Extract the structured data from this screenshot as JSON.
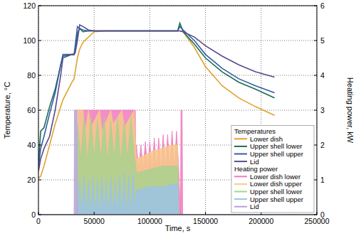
{
  "chart_data": {
    "type": "line",
    "x_label": "Time, s",
    "y_label": "Temperature, °C",
    "y2_label": "Heating power, kW",
    "xlim": [
      0,
      250000
    ],
    "xticks": [
      0,
      50000,
      100000,
      150000,
      200000,
      250000
    ],
    "ylim": [
      0,
      120
    ],
    "yticks": [
      0,
      20,
      40,
      60,
      80,
      100,
      120
    ],
    "y2lim": [
      0,
      6
    ],
    "y2ticks": [
      0,
      1,
      2,
      3,
      4,
      5,
      6
    ],
    "grid": true,
    "legend": "lower right",
    "legend_titles": [
      "Temperatures",
      "Heating power"
    ],
    "x": [
      0,
      2000,
      5000,
      10000,
      15000,
      20000,
      22000,
      30000,
      32000,
      33000,
      35000,
      37000,
      40000,
      45000,
      50000,
      60000,
      80000,
      100000,
      120000,
      125000,
      127000,
      130000,
      140000,
      150000,
      165000,
      180000,
      195000,
      212000
    ],
    "series": [
      {
        "name": "Lower dish",
        "color": "#e0a12e",
        "type": "line",
        "values": [
          21,
          22,
          28,
          40,
          52,
          62,
          66,
          76,
          78,
          82,
          90,
          95,
          99,
          102,
          105,
          105.5,
          105.5,
          105.5,
          105.5,
          105.5,
          105.5,
          105,
          96,
          85,
          74,
          67,
          62,
          57
        ]
      },
      {
        "name": "Upper shell lower",
        "color": "#1e6b52",
        "type": "line",
        "values": [
          29,
          48,
          50,
          62,
          72,
          86,
          91,
          92,
          92,
          95,
          104,
          107,
          105,
          105.5,
          105.5,
          105.5,
          105.5,
          105.5,
          105.5,
          105.5,
          110,
          105,
          98,
          90,
          82,
          76,
          72,
          67
        ]
      },
      {
        "name": "Upper shell upper",
        "color": "#2f5fa6",
        "type": "line",
        "values": [
          27,
          38,
          45,
          58,
          70,
          86,
          92,
          92,
          92,
          97,
          108,
          107,
          106,
          105.5,
          105.5,
          105.5,
          105.5,
          105.5,
          105.5,
          105.5,
          108,
          106,
          100,
          92,
          84,
          78,
          74,
          70
        ]
      },
      {
        "name": "Lid",
        "color": "#5a4a8f",
        "type": "line",
        "values": [
          25,
          32,
          38,
          45,
          60,
          80,
          90,
          92,
          92,
          93,
          100,
          109,
          108,
          106,
          105.5,
          105.5,
          105.5,
          105.5,
          105.5,
          105.5,
          105.5,
          105,
          102,
          97,
          91,
          86,
          82,
          79
        ]
      },
      {
        "name": "Lower dish lower",
        "color": "#f07ac0",
        "type": "area",
        "axis": "y2",
        "x": [
          0,
          32000,
          35000,
          35200,
          87000,
          87500,
          88000,
          90000,
          92000,
          94000,
          96000,
          98000,
          100000,
          102000,
          104000,
          106000,
          108000,
          110000,
          112000,
          114000,
          116000,
          118000,
          120000,
          122000,
          124000,
          126000,
          127500,
          128000,
          129000,
          129500,
          250000
        ],
        "values": [
          0,
          0,
          0,
          3,
          3,
          1.3,
          2.0,
          1.3,
          2.0,
          1.3,
          2.1,
          1.3,
          2.1,
          1.3,
          2.2,
          1.3,
          2.2,
          1.3,
          2.3,
          1.3,
          2.3,
          1.3,
          2.4,
          1.3,
          2.4,
          1.3,
          0,
          3,
          3,
          0,
          0
        ]
      },
      {
        "name": "Lower dish upper",
        "color": "#f8c98a",
        "type": "area",
        "axis": "y2",
        "x": [
          0,
          35000,
          35200,
          40000,
          42000,
          45000,
          47000,
          55000,
          57000,
          65000,
          67000,
          75000,
          77000,
          86000,
          87000,
          88000,
          95000,
          100000,
          110000,
          120000,
          125000,
          126000,
          250000
        ],
        "values": [
          0,
          0,
          3,
          3,
          2.4,
          3,
          2.5,
          3,
          2.4,
          3,
          2.6,
          3,
          2.5,
          3,
          2.2,
          1.6,
          1.7,
          1.8,
          1.9,
          2.0,
          2.0,
          0,
          0
        ]
      },
      {
        "name": "Upper shell lower",
        "color": "#a9d18e",
        "type": "area",
        "axis": "y2",
        "x": [
          0,
          35000,
          35200,
          38000,
          41000,
          44000,
          47000,
          50000,
          53000,
          56000,
          59000,
          62000,
          65000,
          68000,
          71000,
          74000,
          77000,
          80000,
          83000,
          86000,
          87000,
          88000,
          100000,
          112000,
          125000,
          126000,
          250000
        ],
        "values": [
          0,
          0,
          2.6,
          1.6,
          2.8,
          1.5,
          2.8,
          1.6,
          2.7,
          1.6,
          2.8,
          1.5,
          2.7,
          1.6,
          2.8,
          1.5,
          2.7,
          1.6,
          2.8,
          1.7,
          1.5,
          1.2,
          1.3,
          1.4,
          1.4,
          0,
          0
        ]
      },
      {
        "name": "Upper shell upper",
        "color": "#9cc3e6",
        "type": "area",
        "axis": "y2",
        "x": [
          0,
          35000,
          37000,
          39000,
          41000,
          43000,
          45000,
          47000,
          49000,
          51000,
          53000,
          55000,
          57000,
          59000,
          61000,
          63000,
          65000,
          67000,
          69000,
          71000,
          73000,
          75000,
          77000,
          79000,
          81000,
          83000,
          85000,
          87000,
          88000,
          100000,
          112000,
          125000,
          126000,
          250000
        ],
        "values": [
          0,
          0,
          1.0,
          0,
          1.1,
          0,
          1.0,
          0,
          1.1,
          0,
          1.0,
          0,
          1.1,
          0,
          1.0,
          0,
          1.1,
          0,
          1.0,
          0,
          1.1,
          0,
          1.2,
          0,
          1.1,
          0,
          1.2,
          0.2,
          0.7,
          0.8,
          0.8,
          0.9,
          0,
          0
        ]
      },
      {
        "name": "Lid",
        "color": "#b3a2da",
        "type": "area",
        "axis": "y2",
        "x": [
          0,
          32000,
          32300,
          34500,
          34800,
          250000
        ],
        "values": [
          0,
          0,
          3,
          3,
          0,
          0
        ]
      }
    ]
  }
}
